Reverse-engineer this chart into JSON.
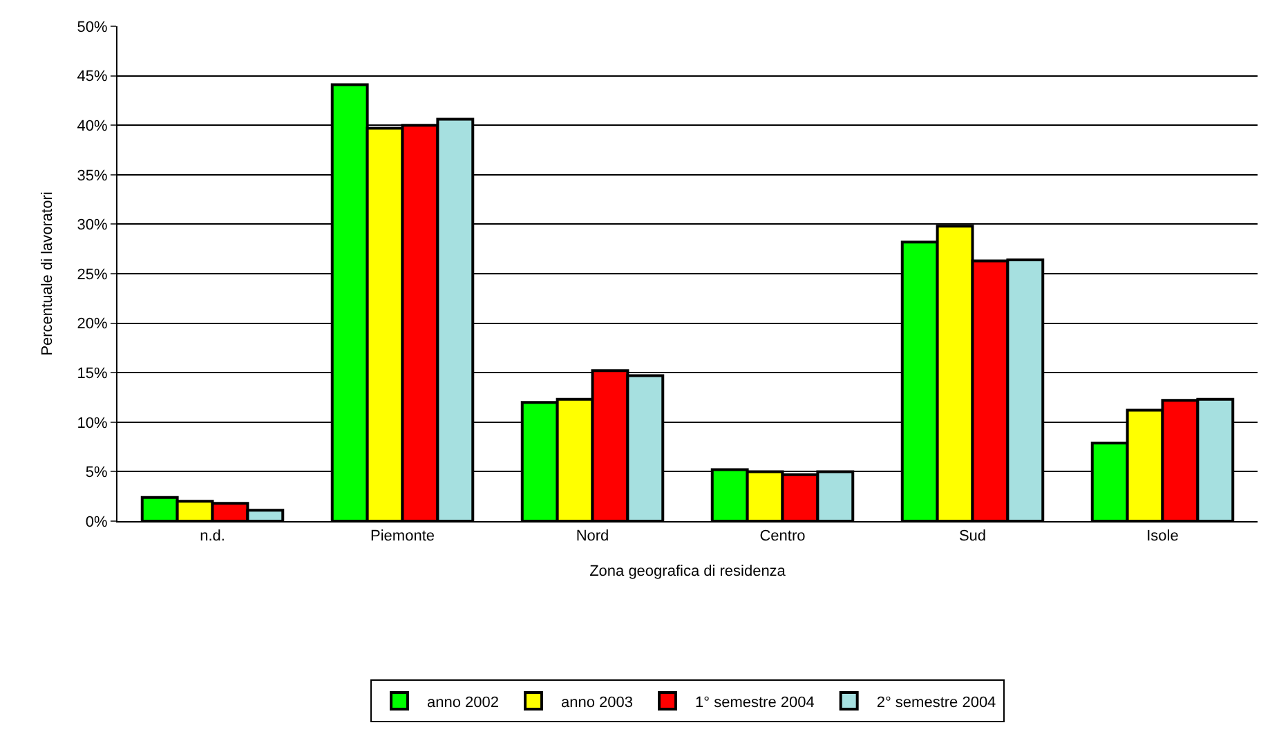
{
  "chart_data": {
    "type": "bar",
    "xlabel": "Zona geografica di residenza",
    "ylabel": "Percentuale di lavoratori",
    "categories": [
      "n.d.",
      "Piemonte",
      "Nord",
      "Centro",
      "Sud",
      "Isole"
    ],
    "series": [
      {
        "name": "anno 2002",
        "color": "#00ff00",
        "values": [
          2.4,
          44.1,
          12.0,
          5.2,
          28.2,
          7.9
        ]
      },
      {
        "name": "anno 2003",
        "color": "#ffff00",
        "values": [
          2.0,
          39.7,
          12.3,
          5.0,
          29.8,
          11.2
        ]
      },
      {
        "name": "1° semestre 2004",
        "color": "#ff0000",
        "values": [
          1.8,
          40.0,
          15.2,
          4.7,
          26.3,
          12.2
        ]
      },
      {
        "name": "2° semestre 2004",
        "color": "#a6e0e0",
        "values": [
          1.1,
          40.6,
          14.7,
          5.0,
          26.4,
          12.3
        ]
      }
    ],
    "ylim": [
      0,
      50
    ],
    "yticks": [
      {
        "value": 0,
        "label": "0%"
      },
      {
        "value": 5,
        "label": "5%"
      },
      {
        "value": 10,
        "label": "10%"
      },
      {
        "value": 15,
        "label": "15%"
      },
      {
        "value": 20,
        "label": "20%"
      },
      {
        "value": 25,
        "label": "25%"
      },
      {
        "value": 30,
        "label": "30%"
      },
      {
        "value": 35,
        "label": "35%"
      },
      {
        "value": 40,
        "label": "40%"
      },
      {
        "value": 45,
        "label": "45%"
      },
      {
        "value": 50,
        "label": "50%"
      }
    ],
    "grid": "y",
    "legend": "bottom"
  }
}
